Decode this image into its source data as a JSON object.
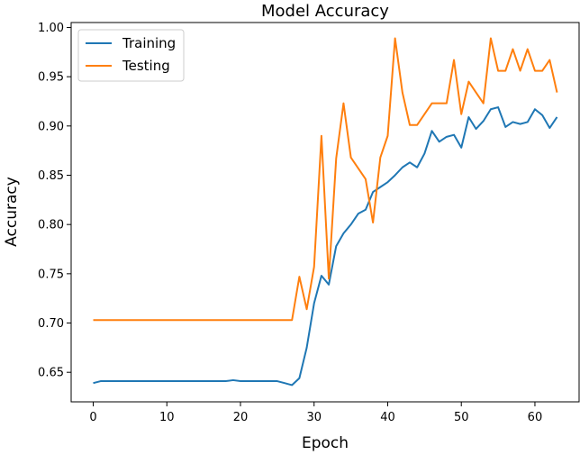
{
  "chart_data": {
    "type": "line",
    "title": "Model Accuracy",
    "xlabel": "Epoch",
    "ylabel": "Accuracy",
    "xlim": [
      -3,
      66
    ],
    "ylim": [
      0.62,
      1.005
    ],
    "xticks": [
      0,
      10,
      20,
      30,
      40,
      50,
      60
    ],
    "yticks": [
      0.65,
      0.7,
      0.75,
      0.8,
      0.85,
      0.9,
      0.95,
      1.0
    ],
    "legend_position": "top-left",
    "grid": false,
    "series": [
      {
        "name": "Training",
        "color": "#1f77b4",
        "x": [
          0,
          1,
          2,
          3,
          4,
          5,
          6,
          7,
          8,
          9,
          10,
          11,
          12,
          13,
          14,
          15,
          16,
          17,
          18,
          19,
          20,
          21,
          22,
          23,
          24,
          25,
          26,
          27,
          28,
          29,
          30,
          31,
          32,
          33,
          34,
          35,
          36,
          37,
          38,
          39,
          40,
          41,
          42,
          43,
          44,
          45,
          46,
          47,
          48,
          49,
          50,
          51,
          52,
          53,
          54,
          55,
          56,
          57,
          58,
          59,
          60,
          61,
          62,
          63
        ],
        "values": [
          0.639,
          0.641,
          0.641,
          0.641,
          0.641,
          0.641,
          0.641,
          0.641,
          0.641,
          0.641,
          0.641,
          0.641,
          0.641,
          0.641,
          0.641,
          0.641,
          0.641,
          0.641,
          0.641,
          0.642,
          0.641,
          0.641,
          0.641,
          0.641,
          0.641,
          0.641,
          0.639,
          0.637,
          0.644,
          0.675,
          0.72,
          0.748,
          0.739,
          0.778,
          0.791,
          0.8,
          0.811,
          0.815,
          0.833,
          0.838,
          0.843,
          0.85,
          0.858,
          0.863,
          0.858,
          0.872,
          0.895,
          0.884,
          0.889,
          0.891,
          0.878,
          0.909,
          0.897,
          0.905,
          0.917,
          0.919,
          0.899,
          0.904,
          0.902,
          0.904,
          0.917,
          0.911,
          0.898,
          0.909
        ]
      },
      {
        "name": "Testing",
        "color": "#ff7f0e",
        "x": [
          0,
          1,
          2,
          3,
          4,
          5,
          6,
          7,
          8,
          9,
          10,
          11,
          12,
          13,
          14,
          15,
          16,
          17,
          18,
          19,
          20,
          21,
          22,
          23,
          24,
          25,
          26,
          27,
          28,
          29,
          30,
          31,
          32,
          33,
          34,
          35,
          36,
          37,
          38,
          39,
          40,
          41,
          42,
          43,
          44,
          45,
          46,
          47,
          48,
          49,
          50,
          51,
          52,
          53,
          54,
          55,
          56,
          57,
          58,
          59,
          60,
          61,
          62,
          63
        ],
        "values": [
          0.703,
          0.703,
          0.703,
          0.703,
          0.703,
          0.703,
          0.703,
          0.703,
          0.703,
          0.703,
          0.703,
          0.703,
          0.703,
          0.703,
          0.703,
          0.703,
          0.703,
          0.703,
          0.703,
          0.703,
          0.703,
          0.703,
          0.703,
          0.703,
          0.703,
          0.703,
          0.703,
          0.703,
          0.747,
          0.714,
          0.757,
          0.89,
          0.745,
          0.867,
          0.923,
          0.868,
          0.857,
          0.846,
          0.802,
          0.868,
          0.89,
          0.989,
          0.934,
          0.901,
          0.901,
          0.912,
          0.923,
          0.923,
          0.923,
          0.967,
          0.912,
          0.945,
          0.934,
          0.923,
          0.989,
          0.956,
          0.956,
          0.978,
          0.956,
          0.978,
          0.956,
          0.956,
          0.967,
          0.934
        ]
      }
    ]
  }
}
